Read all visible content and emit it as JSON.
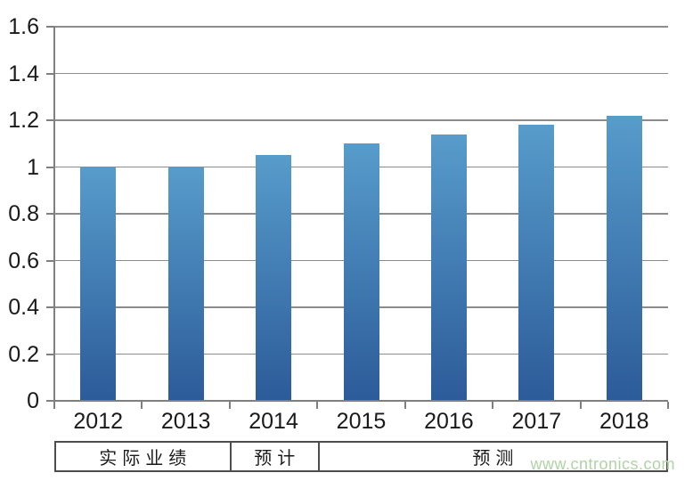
{
  "chart_data": {
    "type": "bar",
    "title": "",
    "xlabel": "",
    "ylabel": "",
    "categories": [
      "2012",
      "2013",
      "2014",
      "2015",
      "2016",
      "2017",
      "2018"
    ],
    "values": [
      1.0,
      1.0,
      1.05,
      1.1,
      1.14,
      1.18,
      1.22
    ],
    "ylim": [
      0,
      1.6
    ],
    "ytick_step": 0.2,
    "ytick_labels": [
      "0",
      "0.2",
      "0.4",
      "0.6",
      "0.8",
      "1",
      "1.2",
      "1.4",
      "1.6"
    ],
    "grid": true,
    "legend_position": "none"
  },
  "annotation_row": {
    "cells": [
      {
        "label": "实际业绩",
        "span": 2
      },
      {
        "label": "预计",
        "span": 1
      },
      {
        "label": "预测",
        "span": 4
      }
    ]
  },
  "watermark": {
    "text": "www.cntronics.com"
  },
  "colors": {
    "background": "#FFFFFF",
    "bar_gradient_top": "#579CCB",
    "bar_gradient_bottom": "#2C5B99",
    "gridline": "#8C8C8C",
    "axis": "#7F7F7F",
    "label_text": "#1A1A1A",
    "table_border": "#4D4D4D",
    "watermark": "#AFD3A5"
  }
}
